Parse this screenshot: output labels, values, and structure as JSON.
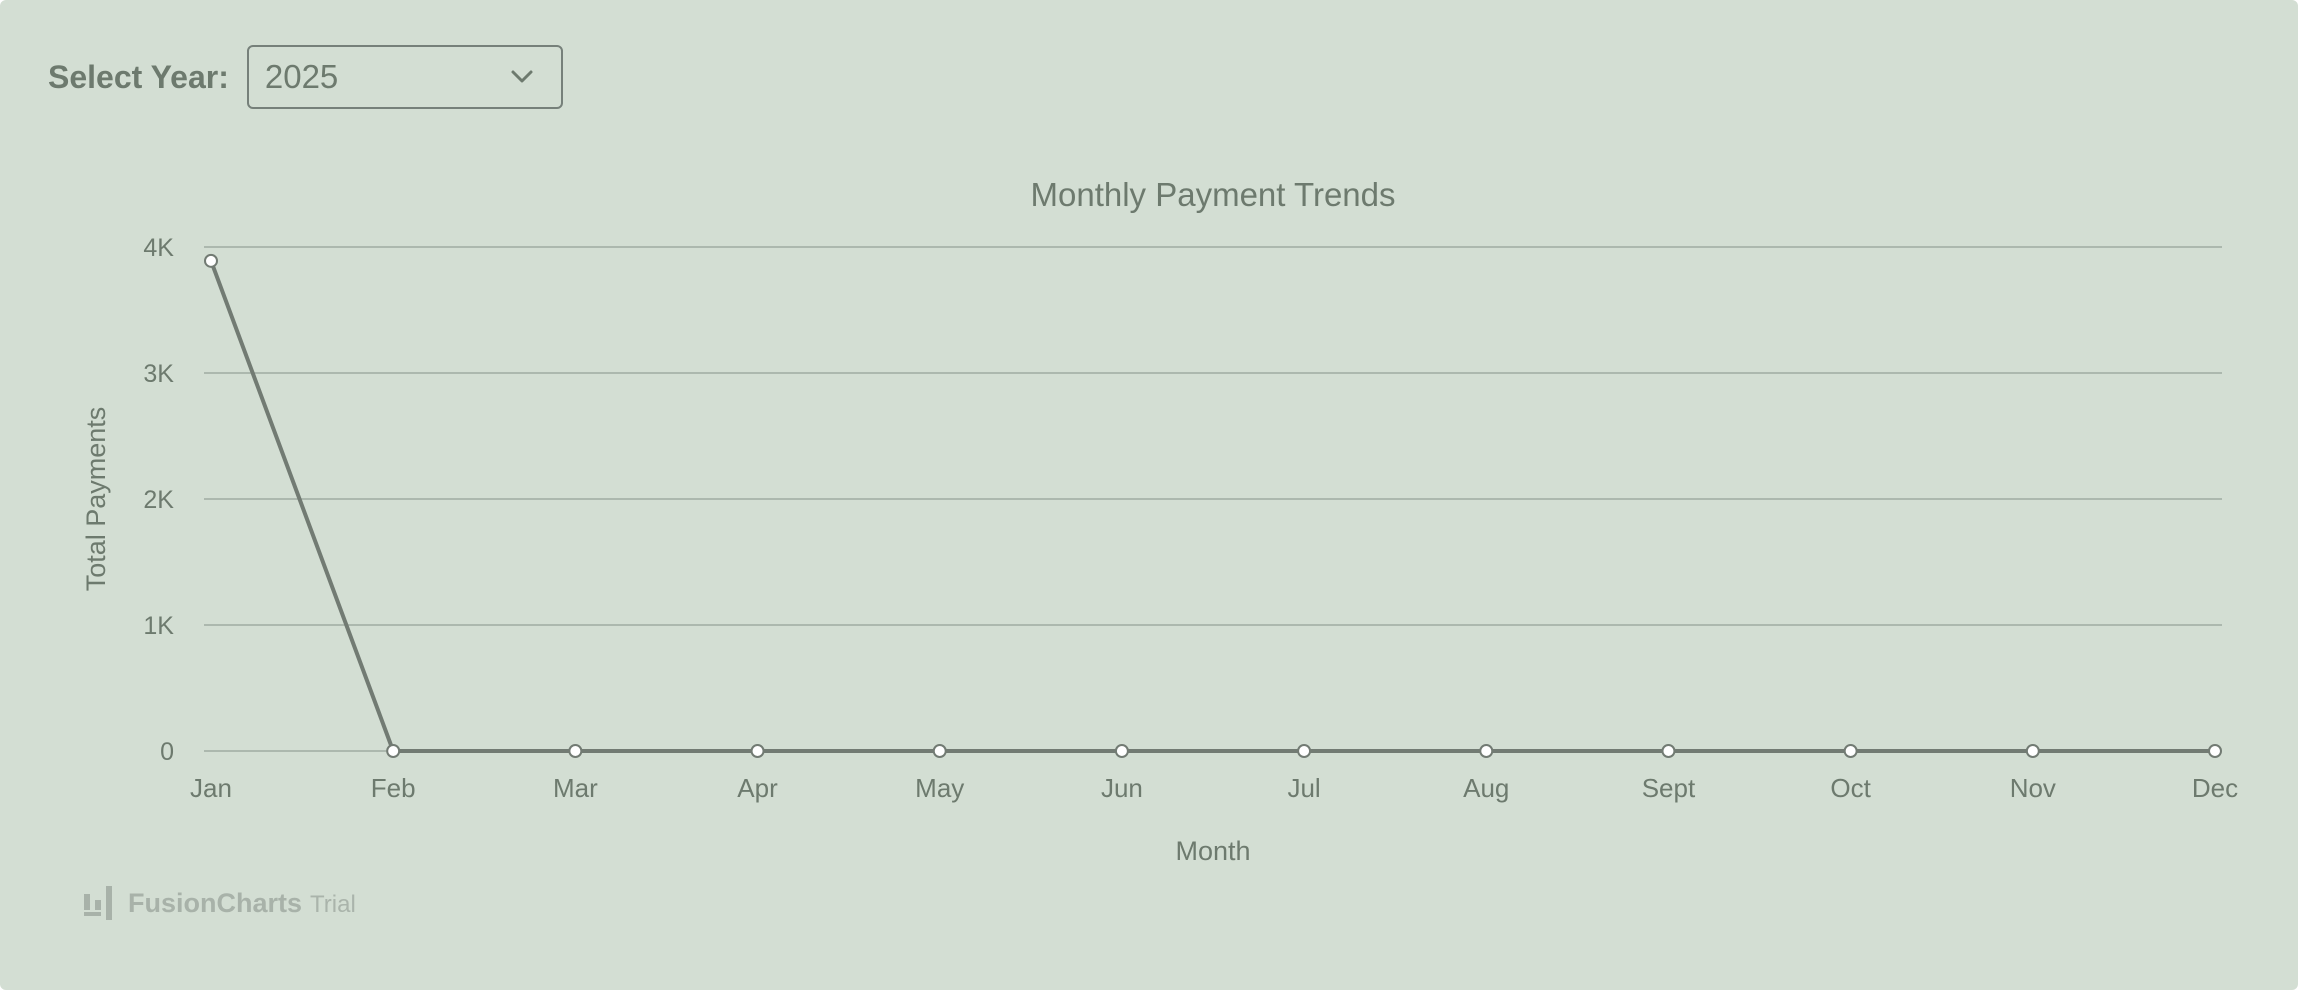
{
  "filter": {
    "label": "Select Year:",
    "selected_year": "2025"
  },
  "chart_data": {
    "type": "line",
    "title": "Monthly Payment Trends",
    "xlabel": "Month",
    "ylabel": "Total Payments",
    "categories": [
      "Jan",
      "Feb",
      "Mar",
      "Apr",
      "May",
      "Jun",
      "Jul",
      "Aug",
      "Sept",
      "Oct",
      "Nov",
      "Dec"
    ],
    "series": [
      {
        "values": [
          3890,
          0,
          0,
          0,
          0,
          0,
          0,
          0,
          0,
          0,
          0,
          0
        ]
      }
    ],
    "ylim": [
      0,
      4000
    ],
    "y_ticks": [
      0,
      1000,
      2000,
      3000,
      4000
    ],
    "y_tick_labels": [
      "0",
      "1K",
      "2K",
      "3K",
      "4K"
    ],
    "grid": true,
    "legend": "none"
  },
  "colors": {
    "background": "#d3ded3",
    "line": "#727b73",
    "gridline": "#a0aca1",
    "text": "#6d7a6e",
    "marker_fill": "#ffffff"
  },
  "branding": {
    "name": "FusionCharts",
    "suffix": "Trial",
    "icon": "fusioncharts-logo-icon"
  },
  "icons": {
    "dropdown": "chevron-down-icon"
  }
}
